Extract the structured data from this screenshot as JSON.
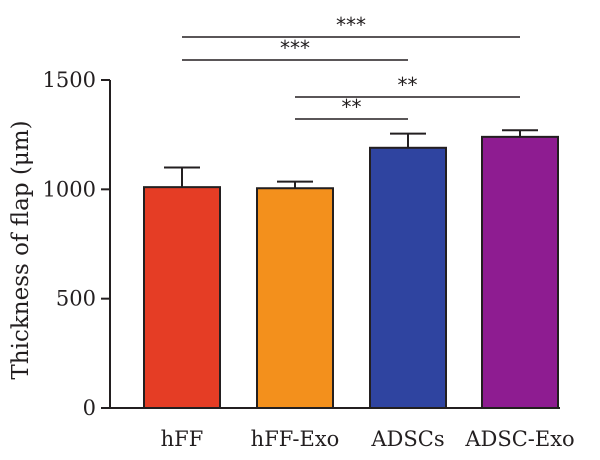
{
  "chart_data": {
    "type": "bar",
    "title": "",
    "xlabel": "",
    "ylabel": "Thickness of flap (μm)",
    "ylim": [
      0,
      1500
    ],
    "yticks": [
      0,
      500,
      1000,
      1500
    ],
    "categories": [
      "hFF",
      "hFF-Exo",
      "ADSCs",
      "ADSC-Exo"
    ],
    "values": [
      1010,
      1005,
      1190,
      1240
    ],
    "error_upper": [
      90,
      30,
      65,
      30
    ],
    "colors": [
      "#e53d25",
      "#f3901c",
      "#2f44a0",
      "#8e1c91"
    ],
    "significance": [
      {
        "from": "hFF",
        "to": "ADSCs",
        "label": "***"
      },
      {
        "from": "hFF",
        "to": "ADSC-Exo",
        "label": "***"
      },
      {
        "from": "hFF-Exo",
        "to": "ADSCs",
        "label": "**"
      },
      {
        "from": "hFF-Exo",
        "to": "ADSC-Exo",
        "label": "**"
      }
    ]
  }
}
